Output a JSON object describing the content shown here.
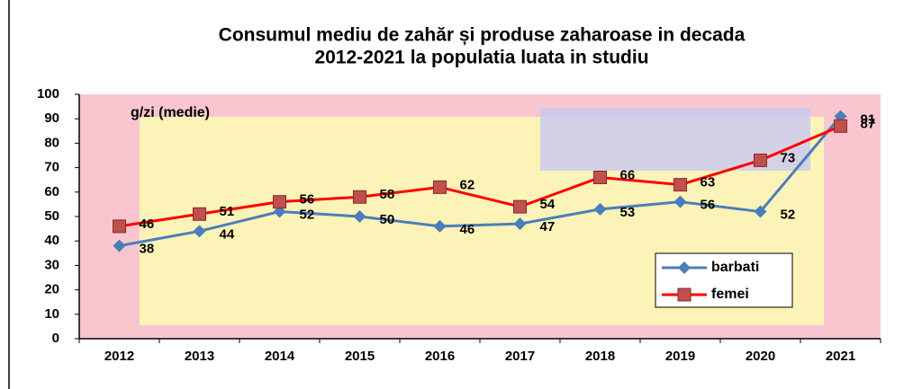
{
  "chart_data": {
    "type": "line",
    "title": "Consumul mediu de zahăr și produse zaharoase in decada",
    "subtitle": "2012-2021 la populatia luata in studiu",
    "annotation": "g/zi (medie)",
    "categories": [
      "2012",
      "2013",
      "2014",
      "2015",
      "2016",
      "2017",
      "2018",
      "2019",
      "2020",
      "2021"
    ],
    "series": [
      {
        "name": "barbati",
        "color": "#4a7ebb",
        "marker": "diamond",
        "values": [
          38,
          44,
          52,
          50,
          46,
          47,
          53,
          56,
          52,
          91
        ]
      },
      {
        "name": "femei",
        "color": "#ff0000",
        "marker": "square",
        "values": [
          46,
          51,
          56,
          58,
          62,
          54,
          66,
          63,
          73,
          87
        ]
      }
    ],
    "ylim": [
      0,
      100
    ],
    "yticks": [
      0,
      10,
      20,
      30,
      40,
      50,
      60,
      70,
      80,
      90,
      100
    ]
  }
}
